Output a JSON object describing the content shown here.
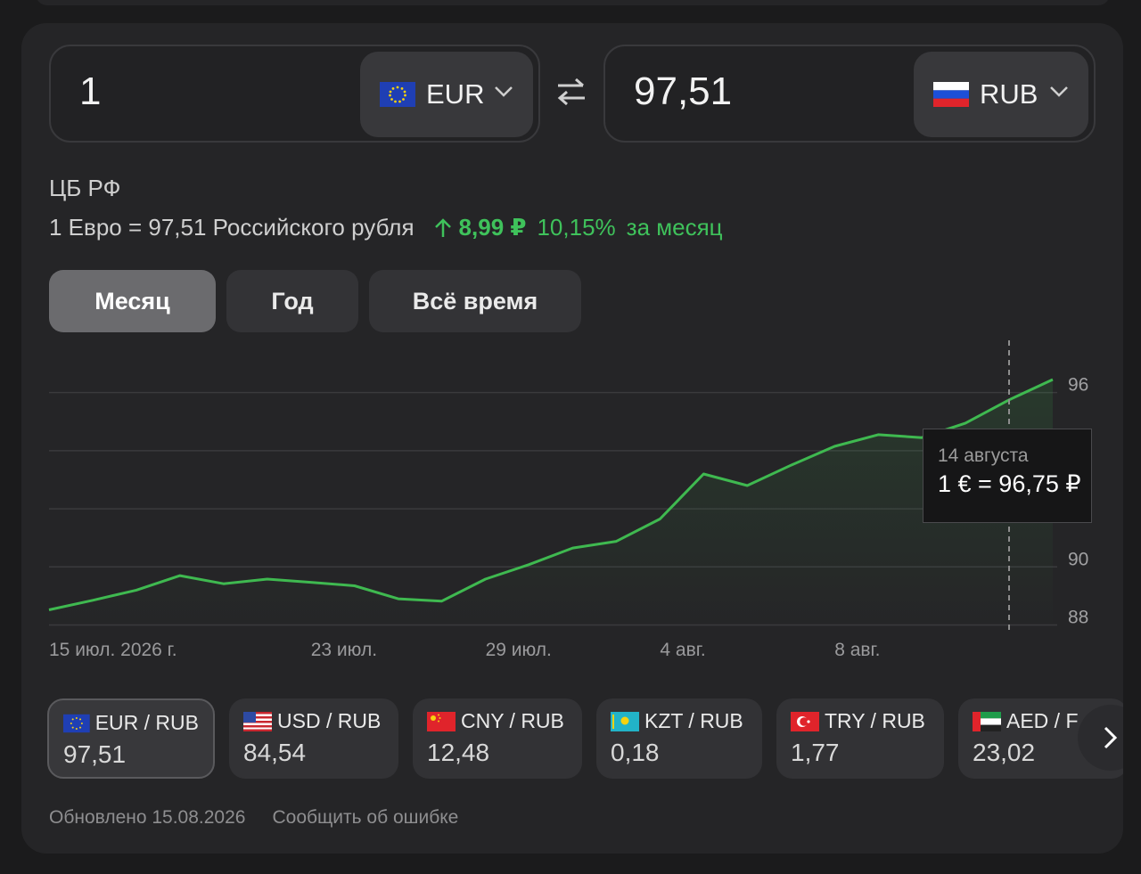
{
  "converter": {
    "from_amount": "1",
    "from_currency": "EUR",
    "to_amount": "97,51",
    "to_currency": "RUB"
  },
  "rate_info": {
    "source": "ЦБ РФ",
    "text": "1 Евро = 97,51 Российского рубля",
    "delta_abs": "8,99 ₽",
    "delta_pct": "10,15%",
    "delta_period": "за месяц"
  },
  "period_tabs": [
    {
      "label": "Месяц",
      "active": true
    },
    {
      "label": "Год",
      "active": false
    },
    {
      "label": "Всё время",
      "active": false
    }
  ],
  "chart_data": {
    "type": "line",
    "title": "",
    "xlabel": "",
    "ylabel": "",
    "x_tick_labels": [
      "15 июл. 2026 г.",
      "23 июл.",
      "29 июл.",
      "4 авг.",
      "8 авг."
    ],
    "y_tick_labels": [
      "96",
      "90",
      "88"
    ],
    "ylim": [
      87.8,
      97.8
    ],
    "grid": true,
    "line_color": "#3fb950",
    "series": [
      {
        "values": [
          88.52,
          88.85,
          89.2,
          89.7,
          89.42,
          89.58,
          89.47,
          89.35,
          88.9,
          88.82,
          89.58,
          90.08,
          90.65,
          90.88,
          91.65,
          93.2,
          92.8,
          93.5,
          94.15,
          94.55,
          94.45,
          94.95,
          95.75,
          96.45
        ]
      }
    ],
    "highlight": {
      "date": "14 августа",
      "value": "1 € = 96,75 ₽"
    }
  },
  "pairs": [
    {
      "label": "EUR / RUB",
      "value": "97,51",
      "flag": "eu-flag-icon",
      "active": true
    },
    {
      "label": "USD / RUB",
      "value": "84,54",
      "flag": "us-flag-icon",
      "active": false
    },
    {
      "label": "CNY / RUB",
      "value": "12,48",
      "flag": "cn-flag-icon",
      "active": false
    },
    {
      "label": "KZT / RUB",
      "value": "0,18",
      "flag": "kz-flag-icon",
      "active": false
    },
    {
      "label": "TRY / RUB",
      "value": "1,77",
      "flag": "tr-flag-icon",
      "active": false
    },
    {
      "label": "AED / F",
      "value": "23,02",
      "flag": "ae-flag-icon",
      "active": false
    }
  ],
  "footer": {
    "updated": "Обновлено 15.08.2026",
    "report": "Сообщить об ошибке"
  }
}
